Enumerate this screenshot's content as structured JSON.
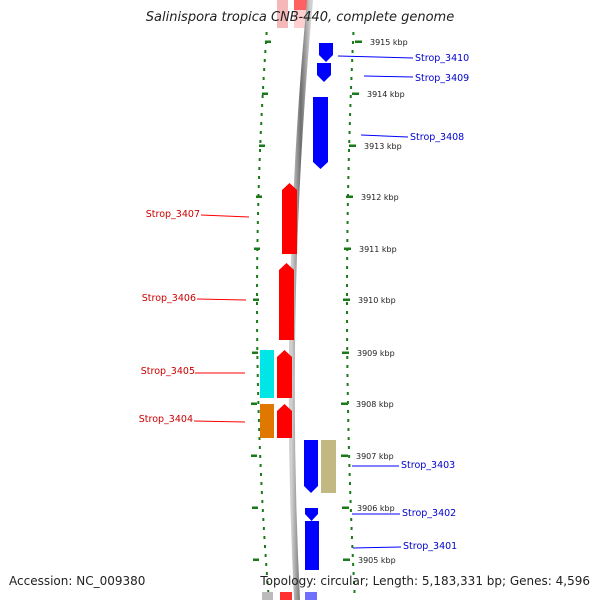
{
  "title": "Salinispora tropica CNB-440, complete genome",
  "footer": {
    "accession": "Accession: NC_009380",
    "summary": "Topology: circular; Length: 5,183,331 bp; Genes: 4,596"
  },
  "colors": {
    "forward": "#ff0000",
    "reverse": "#0000ff",
    "cyan": "#00e5e5",
    "orange": "#e07800",
    "khaki": "#c2b982",
    "tick": "#1a7a1a",
    "backbone": "#888888"
  },
  "ticks": [
    {
      "label": "3915 kbp"
    },
    {
      "label": "3914 kbp"
    },
    {
      "label": "3913 kbp"
    },
    {
      "label": "3912 kbp"
    },
    {
      "label": "3911 kbp"
    },
    {
      "label": "3910 kbp"
    },
    {
      "label": "3909 kbp"
    },
    {
      "label": "3908 kbp"
    },
    {
      "label": "3907 kbp"
    },
    {
      "label": "3906 kbp"
    },
    {
      "label": "3905 kbp"
    }
  ],
  "genes": [
    {
      "name": "Strop_3410",
      "strand": "reverse"
    },
    {
      "name": "Strop_3409",
      "strand": "reverse"
    },
    {
      "name": "Strop_3408",
      "strand": "reverse"
    },
    {
      "name": "Strop_3407",
      "strand": "forward"
    },
    {
      "name": "Strop_3406",
      "strand": "forward"
    },
    {
      "name": "Strop_3405",
      "strand": "forward"
    },
    {
      "name": "Strop_3404",
      "strand": "forward"
    },
    {
      "name": "Strop_3403",
      "strand": "reverse"
    },
    {
      "name": "Strop_3402",
      "strand": "reverse"
    },
    {
      "name": "Strop_3401",
      "strand": "reverse"
    }
  ]
}
